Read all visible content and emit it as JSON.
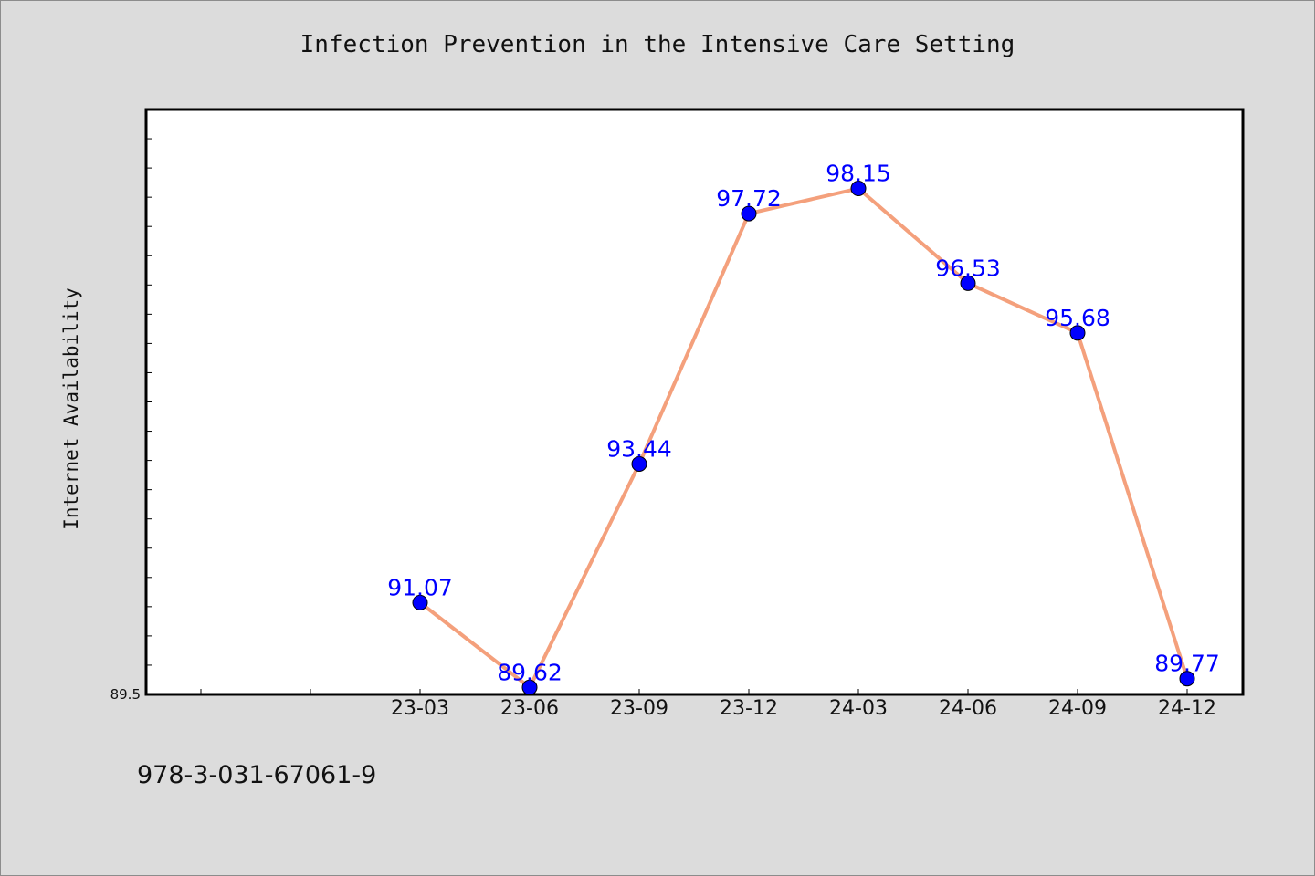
{
  "chart_data": {
    "type": "line",
    "title": "Infection Prevention in the Intensive Care Setting",
    "xlabel": "",
    "ylabel": "Internet Availability",
    "categories": [
      "23-03",
      "23-06",
      "23-09",
      "23-12",
      "24-03",
      "24-06",
      "24-09",
      "24-12"
    ],
    "series": [
      {
        "values": [
          91.07,
          89.62,
          93.44,
          97.72,
          98.15,
          96.53,
          95.68,
          89.77
        ],
        "data_labels": [
          "91.07",
          "89.62",
          "93.44",
          "97.72",
          "98.15",
          "96.53",
          "95.68",
          "89.77"
        ]
      }
    ],
    "ylim": [
      89.5,
      99.5
    ],
    "y_tick_labels": [
      "89.5"
    ],
    "grid": false,
    "legend": "none",
    "colors": {
      "line": "#f4a07c",
      "marker": "#0000ff",
      "marker_edge": "#000000",
      "data_label": "#0000ff",
      "plot_bg": "#ffffff",
      "figure_bg": "#dcdcdc"
    }
  },
  "footer": {
    "isbn": "978-3-031-67061-9"
  }
}
